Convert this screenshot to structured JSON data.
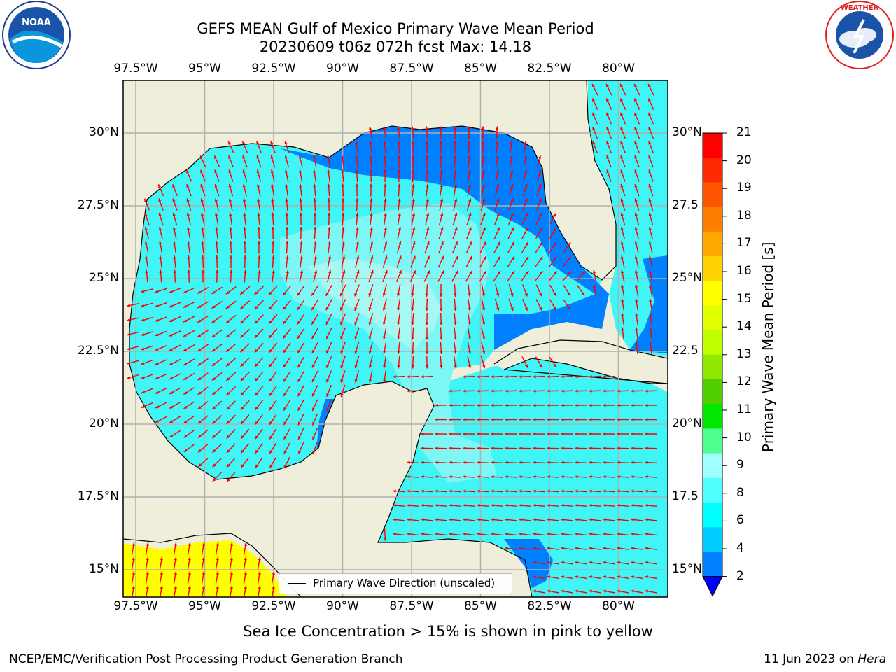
{
  "title": {
    "line1": "GEFS MEAN Gulf of Mexico Primary Wave Mean Period",
    "line2": "20230609 t06z 072h fcst   Max: 14.18"
  },
  "logos": {
    "left": "noaa-logo",
    "right": "national-weather-service-logo"
  },
  "axes": {
    "lon_ticks": [
      "97.5°W",
      "95°W",
      "92.5°W",
      "90°W",
      "87.5°W",
      "85°W",
      "82.5°W",
      "80°W"
    ],
    "lat_ticks_left": [
      "30°N",
      "27.5°N",
      "25°N",
      "22.5°N",
      "20°N",
      "17.5°N",
      "15°N"
    ],
    "lat_ticks_right": [
      "30°N",
      "27.5",
      "25°N",
      "22.5",
      "20°N",
      "17.5",
      "15°N"
    ]
  },
  "legend": {
    "label": "Primary Wave Direction (unscaled)"
  },
  "colorbar": {
    "label": "Primary Wave Mean Period [s]",
    "ticks": [
      "21",
      "20",
      "19",
      "18",
      "17",
      "16",
      "15",
      "14",
      "13",
      "12",
      "11",
      "10",
      "9",
      "8",
      "6",
      "4",
      "2"
    ],
    "colors": [
      "#ff0000",
      "#ff2a00",
      "#ff5400",
      "#ff7e00",
      "#ffa800",
      "#ffd200",
      "#ffff00",
      "#e0ff00",
      "#c0ff00",
      "#90e800",
      "#50d000",
      "#00e800",
      "#50ff90",
      "#a0ffff",
      "#50ffff",
      "#00ffff",
      "#00ccff",
      "#0080ff"
    ],
    "extend_color": "#0000ff"
  },
  "colors": {
    "land": "#efeedb",
    "shallow": "#0080ff",
    "mid": "#3ff5f5",
    "light": "#7df7f5",
    "lightest": "#a6f8f3",
    "ice": "#ffff00",
    "arrow": "#ff0000",
    "grid": "#b0b0b0"
  },
  "footer": {
    "note": "Sea Ice Concentration > 15% is shown in pink to yellow",
    "left": "NCEP/EMC/Verification Post Processing Product Generation Branch",
    "right_date": "11 Jun 2023 on ",
    "right_host": "Hera"
  }
}
